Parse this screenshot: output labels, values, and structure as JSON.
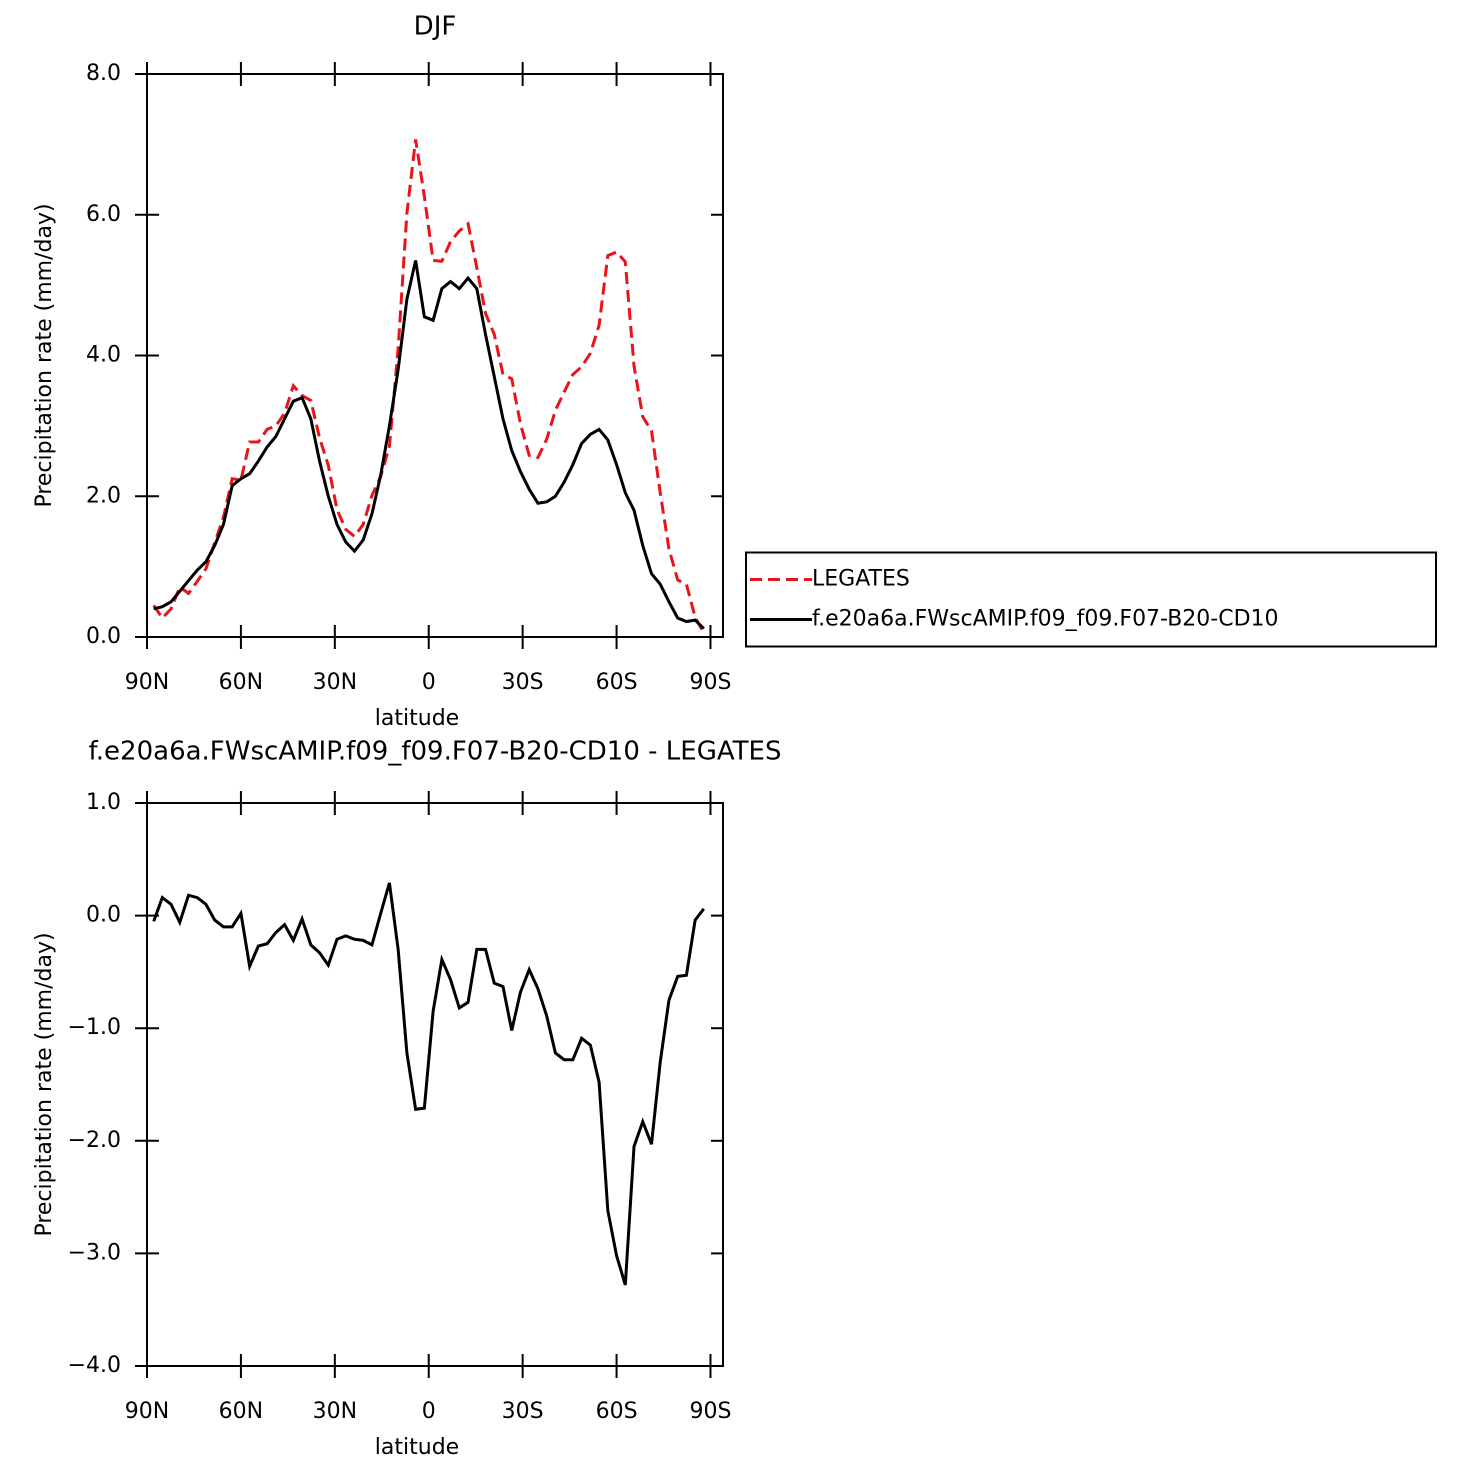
{
  "chart_data": [
    {
      "type": "line",
      "title": "DJF",
      "xlabel": "latitude",
      "ylabel": "Precipitation rate (mm/day)",
      "x": [
        -87.86,
        -85.1,
        -82.31,
        -79.53,
        -76.74,
        -73.95,
        -71.16,
        -68.37,
        -65.58,
        -62.79,
        -60.0,
        -57.21,
        -54.42,
        -51.63,
        -48.84,
        -46.04,
        -43.25,
        -40.46,
        -37.67,
        -34.88,
        -32.09,
        -29.3,
        -26.51,
        -23.72,
        -20.93,
        -18.14,
        -15.35,
        -12.56,
        -9.77,
        -6.98,
        -4.19,
        -1.4,
        1.4,
        4.19,
        6.98,
        9.77,
        12.56,
        15.35,
        18.14,
        20.93,
        23.72,
        26.51,
        29.3,
        32.09,
        34.88,
        37.67,
        40.46,
        43.25,
        46.04,
        48.84,
        51.63,
        54.42,
        57.21,
        60.0,
        62.79,
        65.58,
        68.37,
        71.16,
        73.95,
        76.74,
        79.53,
        82.31,
        85.1,
        87.86
      ],
      "series": [
        {
          "name": "LEGATES",
          "color": "#e8141b",
          "line_style": "dashed",
          "values": [
            0.45,
            0.27,
            0.4,
            0.71,
            0.62,
            0.79,
            0.97,
            1.34,
            1.7,
            2.25,
            2.23,
            2.77,
            2.77,
            2.95,
            3.0,
            3.18,
            3.57,
            3.43,
            3.36,
            2.83,
            2.44,
            1.81,
            1.53,
            1.43,
            1.6,
            2.01,
            2.28,
            2.71,
            4.1,
            6.02,
            7.07,
            6.26,
            5.35,
            5.34,
            5.62,
            5.77,
            5.87,
            5.25,
            4.6,
            4.3,
            3.73,
            3.67,
            3.03,
            2.58,
            2.55,
            2.81,
            3.22,
            3.48,
            3.73,
            3.84,
            4.03,
            4.43,
            5.42,
            5.47,
            5.33,
            3.85,
            3.13,
            2.93,
            2.05,
            1.25,
            0.81,
            0.75,
            0.28,
            0.06
          ]
        },
        {
          "name": "f.e20a6a.FWscAMIP.f09_f09.F07-B20-CD10",
          "color": "#000000",
          "line_style": "solid",
          "values": [
            0.4,
            0.43,
            0.5,
            0.65,
            0.8,
            0.95,
            1.07,
            1.3,
            1.6,
            2.15,
            2.25,
            2.32,
            2.5,
            2.7,
            2.85,
            3.1,
            3.35,
            3.4,
            3.1,
            2.5,
            2.0,
            1.6,
            1.35,
            1.22,
            1.38,
            1.75,
            2.3,
            3.0,
            3.8,
            4.8,
            5.35,
            4.55,
            4.5,
            4.95,
            5.05,
            4.95,
            5.1,
            4.95,
            4.3,
            3.7,
            3.1,
            2.65,
            2.35,
            2.1,
            1.9,
            1.92,
            2.0,
            2.2,
            2.45,
            2.75,
            2.88,
            2.95,
            2.8,
            2.45,
            2.05,
            1.8,
            1.3,
            0.9,
            0.75,
            0.5,
            0.27,
            0.22,
            0.24,
            0.12
          ]
        }
      ],
      "xlim": [
        -90,
        94
      ],
      "xticks": [
        {
          "value": -90,
          "label": "90N"
        },
        {
          "value": -60,
          "label": "60N"
        },
        {
          "value": -30,
          "label": "30N"
        },
        0,
        {
          "value": 30,
          "label": "30S"
        },
        {
          "value": 60,
          "label": "60S"
        },
        {
          "value": 90,
          "label": "90S"
        }
      ],
      "ylim": [
        0,
        8
      ],
      "yticks": [
        {
          "value": 0,
          "label": "0.0"
        },
        {
          "value": 2,
          "label": "2.0"
        },
        {
          "value": 4,
          "label": "4.0"
        },
        {
          "value": 6,
          "label": "6.0"
        },
        {
          "value": 8,
          "label": "8.0"
        }
      ],
      "legend": "right",
      "grid": false
    },
    {
      "type": "line",
      "title": "f.e20a6a.FWscAMIP.f09_f09.F07-B20-CD10 - LEGATES",
      "xlabel": "latitude",
      "ylabel": "Precipitation rate (mm/day)",
      "x": [
        -87.86,
        -85.1,
        -82.31,
        -79.53,
        -76.74,
        -73.95,
        -71.16,
        -68.37,
        -65.58,
        -62.79,
        -60.0,
        -57.21,
        -54.42,
        -51.63,
        -48.84,
        -46.04,
        -43.25,
        -40.46,
        -37.67,
        -34.88,
        -32.09,
        -29.3,
        -26.51,
        -23.72,
        -20.93,
        -18.14,
        -15.35,
        -12.56,
        -9.77,
        -6.98,
        -4.19,
        -1.4,
        1.4,
        4.19,
        6.98,
        9.77,
        12.56,
        15.35,
        18.14,
        20.93,
        23.72,
        26.51,
        29.3,
        32.09,
        34.88,
        37.67,
        40.46,
        43.25,
        46.04,
        48.84,
        51.63,
        54.42,
        57.21,
        60.0,
        62.79,
        65.58,
        68.37,
        71.16,
        73.95,
        76.74,
        79.53,
        82.31,
        85.1,
        87.86
      ],
      "series": [
        {
          "color": "#000000",
          "line_style": "solid",
          "values": [
            -0.05,
            0.16,
            0.1,
            -0.06,
            0.18,
            0.16,
            0.1,
            -0.04,
            -0.1,
            -0.1,
            0.02,
            -0.45,
            -0.27,
            -0.25,
            -0.15,
            -0.08,
            -0.22,
            -0.03,
            -0.26,
            -0.33,
            -0.44,
            -0.21,
            -0.18,
            -0.21,
            -0.22,
            -0.26,
            0.02,
            0.29,
            -0.3,
            -1.22,
            -1.72,
            -1.71,
            -0.85,
            -0.39,
            -0.57,
            -0.82,
            -0.77,
            -0.3,
            -0.3,
            -0.6,
            -0.63,
            -1.02,
            -0.68,
            -0.48,
            -0.65,
            -0.89,
            -1.22,
            -1.28,
            -1.28,
            -1.09,
            -1.15,
            -1.48,
            -2.62,
            -3.02,
            -3.28,
            -2.05,
            -1.83,
            -2.03,
            -1.3,
            -0.75,
            -0.54,
            -0.53,
            -0.04,
            0.06
          ]
        }
      ],
      "xlim": [
        -90,
        94
      ],
      "xticks": [
        {
          "value": -90,
          "label": "90N"
        },
        {
          "value": -60,
          "label": "60N"
        },
        {
          "value": -30,
          "label": "30N"
        },
        0,
        {
          "value": 30,
          "label": "30S"
        },
        {
          "value": 60,
          "label": "60S"
        },
        {
          "value": 90,
          "label": "90S"
        }
      ],
      "ylim": [
        -4,
        1
      ],
      "yticks": [
        {
          "value": -4,
          "label": "−4.0"
        },
        {
          "value": -3,
          "label": "−3.0"
        },
        {
          "value": -2,
          "label": "−2.0"
        },
        {
          "value": -1,
          "label": "−1.0"
        },
        {
          "value": 0,
          "label": "0.0"
        },
        {
          "value": 1,
          "label": "1.0"
        }
      ],
      "grid": false
    }
  ]
}
